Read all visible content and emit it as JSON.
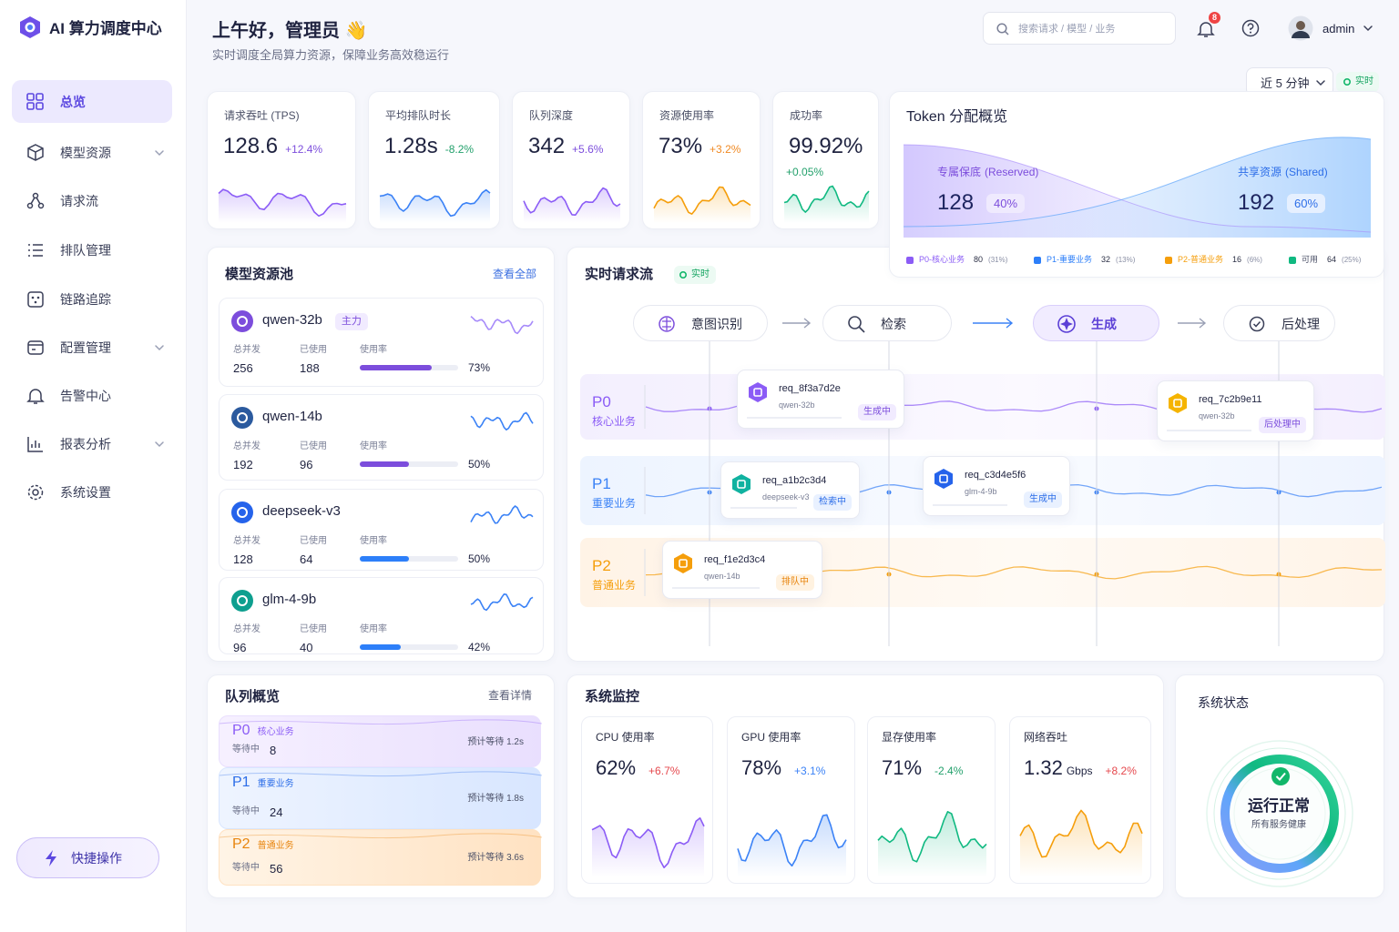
{
  "sidebar": {
    "brand": "AI 算力调度中心",
    "nav": [
      "总览",
      "模型资源",
      "请求流",
      "排队管理",
      "链路追踪",
      "配置管理",
      "告警中心",
      "报表分析",
      "系统设置"
    ],
    "quick_action": "快捷操作"
  },
  "header": {
    "greeting": "上午好，管理员 👋",
    "subtitle": "实时调度全局算力资源，保障业务高效稳运行",
    "search_placeholder": "搜索请求 / 模型 / 业务",
    "notification_count": "8",
    "user": "admin",
    "time_range": "近 5 分钟",
    "live": "实时"
  },
  "kpis": [
    {
      "label": "请求吞吐 (TPS)",
      "value": "128.6",
      "change": "+12.4%"
    },
    {
      "label": "平均排队时长",
      "value": "1.28s",
      "change": "-8.2%"
    },
    {
      "label": "队列深度",
      "value": "342",
      "change": "+5.6%"
    },
    {
      "label": "资源使用率",
      "value": "73%",
      "change": "+3.2%"
    },
    {
      "label": "成功率",
      "value": "99.92%",
      "change": "+0.05%"
    }
  ],
  "token": {
    "title": "Token 分配概览",
    "reserved": {
      "label": "专属保底",
      "sub": "(Reserved)",
      "value": "128",
      "share": "40%"
    },
    "shared": {
      "label": "共享资源",
      "sub": "(Shared)",
      "value": "192",
      "share": "60%"
    },
    "legend": [
      {
        "name": "P0-核心业务",
        "value": "80",
        "share": "(31%)"
      },
      {
        "name": "P1-重要业务",
        "value": "32",
        "share": "(13%)"
      },
      {
        "name": "P2-普通业务",
        "value": "16",
        "share": "(6%)"
      },
      {
        "name": "可用",
        "value": "64",
        "share": "(25%)"
      }
    ]
  },
  "model_pool": {
    "title": "模型资源池",
    "link": "查看全部",
    "col_labels": [
      "总并发",
      "已使用",
      "使用率"
    ],
    "models": [
      {
        "name": "qwen-32b",
        "tag": "主力",
        "total": "256",
        "used": "188",
        "usage": {
          "value": 73,
          "label": "73%"
        }
      },
      {
        "name": "qwen-14b",
        "total": "192",
        "used": "96",
        "usage": {
          "value": 50,
          "label": "50%"
        }
      },
      {
        "name": "deepseek-v3",
        "total": "128",
        "used": "64",
        "usage": {
          "value": 50,
          "label": "50%"
        }
      },
      {
        "name": "glm-4-9b",
        "total": "96",
        "used": "40",
        "usage": {
          "value": 42,
          "label": "42%"
        }
      }
    ]
  },
  "request_flow": {
    "title": "实时请求流",
    "live": "实时",
    "stages": [
      "意图识别",
      "检索",
      "生成",
      "后处理"
    ],
    "lanes": [
      {
        "id": "P0",
        "name": "核心业务"
      },
      {
        "id": "P1",
        "name": "重要业务"
      },
      {
        "id": "P2",
        "name": "普通业务"
      }
    ],
    "requests": [
      {
        "id": "req_8f3a7d2e",
        "model": "qwen-32b",
        "status": "生成中"
      },
      {
        "id": "req_7c2b9e11",
        "model": "qwen-32b",
        "status": "后处理中"
      },
      {
        "id": "req_a1b2c3d4",
        "model": "deepseek-v3",
        "status": "检索中"
      },
      {
        "id": "req_c3d4e5f6",
        "model": "glm-4-9b",
        "status": "生成中"
      },
      {
        "id": "req_f1e2d3c4",
        "model": "qwen-14b",
        "status": "排队中"
      }
    ]
  },
  "queue_overview": {
    "title": "队列概览",
    "link": "查看详情",
    "waiting_label": "等待中",
    "items": [
      {
        "id": "P0",
        "name": "核心业务",
        "waiting": "8",
        "eta": "预计等待 1.2s"
      },
      {
        "id": "P1",
        "name": "重要业务",
        "waiting": "24",
        "eta": "预计等待 1.8s"
      },
      {
        "id": "P2",
        "name": "普通业务",
        "waiting": "56",
        "eta": "预计等待 3.6s"
      }
    ]
  },
  "system_monitor": {
    "title": "系统监控",
    "cards": [
      {
        "label": "CPU 使用率",
        "value": "62%",
        "change": "+6.7%"
      },
      {
        "label": "GPU 使用率",
        "value": "78%",
        "change": "+3.1%"
      },
      {
        "label": "显存使用率",
        "value": "71%",
        "change": "-2.4%"
      },
      {
        "label": "网络吞吐",
        "value": "1.32",
        "unit": "Gbps",
        "change": "+8.2%"
      }
    ]
  },
  "system_status": {
    "title": "系统状态",
    "status": "运行正常",
    "detail": "所有服务健康"
  }
}
